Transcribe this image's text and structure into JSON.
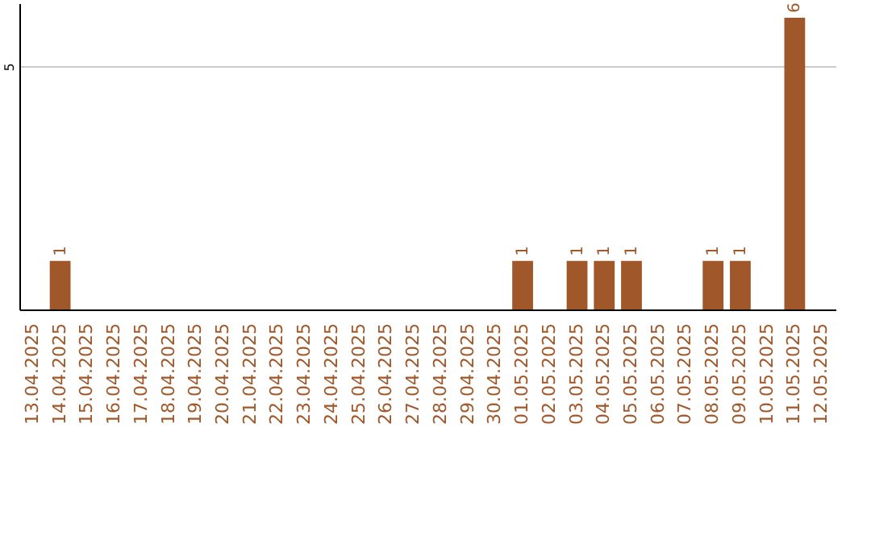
{
  "chart_data": {
    "type": "bar",
    "categories": [
      "13.04.2025",
      "14.04.2025",
      "15.04.2025",
      "16.04.2025",
      "17.04.2025",
      "18.04.2025",
      "19.04.2025",
      "20.04.2025",
      "21.04.2025",
      "22.04.2025",
      "23.04.2025",
      "24.04.2025",
      "25.04.2025",
      "26.04.2025",
      "27.04.2025",
      "28.04.2025",
      "29.04.2025",
      "30.04.2025",
      "01.05.2025",
      "02.05.2025",
      "03.05.2025",
      "04.05.2025",
      "05.05.2025",
      "06.05.2025",
      "07.05.2025",
      "08.05.2025",
      "09.05.2025",
      "10.05.2025",
      "11.05.2025",
      "12.05.2025"
    ],
    "values": [
      0,
      1,
      0,
      0,
      0,
      0,
      0,
      0,
      0,
      0,
      0,
      0,
      0,
      0,
      0,
      0,
      0,
      0,
      1,
      0,
      1,
      1,
      1,
      0,
      0,
      1,
      1,
      0,
      6,
      0
    ],
    "value_labels": [
      null,
      "1",
      null,
      null,
      null,
      null,
      null,
      null,
      null,
      null,
      null,
      null,
      null,
      null,
      null,
      null,
      null,
      null,
      "1",
      null,
      "1",
      "1",
      "1",
      null,
      null,
      "1",
      "1",
      null,
      "6",
      null
    ],
    "color": "#a0582a",
    "ylim": [
      0,
      6.3
    ],
    "yticks": [
      5
    ],
    "grid": "y"
  }
}
